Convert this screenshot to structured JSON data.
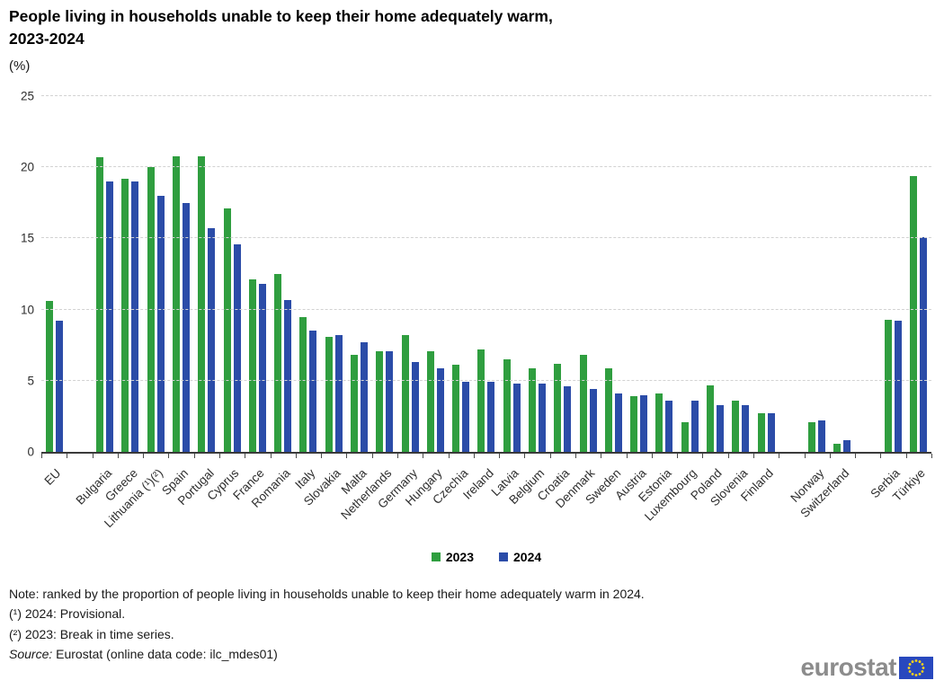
{
  "title": {
    "line1": "People living in households unable to keep their home adequately warm,",
    "line2": "2023-2024"
  },
  "subtitle": "(%)",
  "chart_data": {
    "type": "bar",
    "title": "People living in households unable to keep their home adequately warm, 2023-2024",
    "unit": "(%)",
    "ylim": [
      0,
      25
    ],
    "y_ticks": [
      0,
      5,
      10,
      15,
      20,
      25
    ],
    "grid": true,
    "legend_position": "bottom",
    "categories": [
      "EU",
      "Bulgaria",
      "Greece",
      "Lithuania (¹)(²)",
      "Spain",
      "Portugal",
      "Cyprus",
      "France",
      "Romania",
      "Italy",
      "Slovakia",
      "Malta",
      "Netherlands",
      "Germany",
      "Hungary",
      "Czechia",
      "Ireland",
      "Latvia",
      "Belgium",
      "Croatia",
      "Denmark",
      "Sweden",
      "Austria",
      "Estonia",
      "Luxembourg",
      "Poland",
      "Slovenia",
      "Finland",
      "Norway",
      "Switzerland",
      "Serbia",
      "Türkiye"
    ],
    "series": [
      {
        "name": "2023",
        "color": "#2f9e3f",
        "values": [
          10.6,
          20.7,
          19.2,
          20.0,
          20.8,
          20.8,
          17.1,
          12.1,
          12.5,
          9.5,
          8.1,
          6.8,
          7.1,
          8.2,
          7.1,
          6.1,
          7.2,
          6.5,
          5.9,
          6.2,
          6.8,
          5.9,
          3.9,
          4.1,
          2.1,
          4.7,
          3.6,
          2.7,
          2.1,
          0.6,
          9.3,
          19.4
        ]
      },
      {
        "name": "2024",
        "color": "#2b4ca8",
        "values": [
          9.2,
          19.0,
          19.0,
          18.0,
          17.5,
          15.7,
          14.6,
          11.8,
          10.7,
          8.5,
          8.2,
          7.7,
          7.1,
          6.3,
          5.9,
          4.9,
          4.9,
          4.8,
          4.8,
          4.6,
          4.4,
          4.1,
          4.0,
          3.6,
          3.6,
          3.3,
          3.3,
          2.7,
          2.2,
          0.8,
          9.2,
          15.1
        ]
      }
    ],
    "gaps_after": [
      "EU",
      "Finland",
      "Switzerland"
    ]
  },
  "notes": {
    "line1": "Note: ranked by the proportion of people living in households unable to keep their home adequately warm in 2024.",
    "line2": "(¹) 2024: Provisional.",
    "line3": "(²) 2023: Break in time series.",
    "source_label": "Source:",
    "source_text": " Eurostat (online data code: ilc_mdes01)"
  },
  "branding": {
    "logo_text": "eurostat",
    "flag_blue": "#2848be",
    "star_yellow": "#ffd617"
  }
}
